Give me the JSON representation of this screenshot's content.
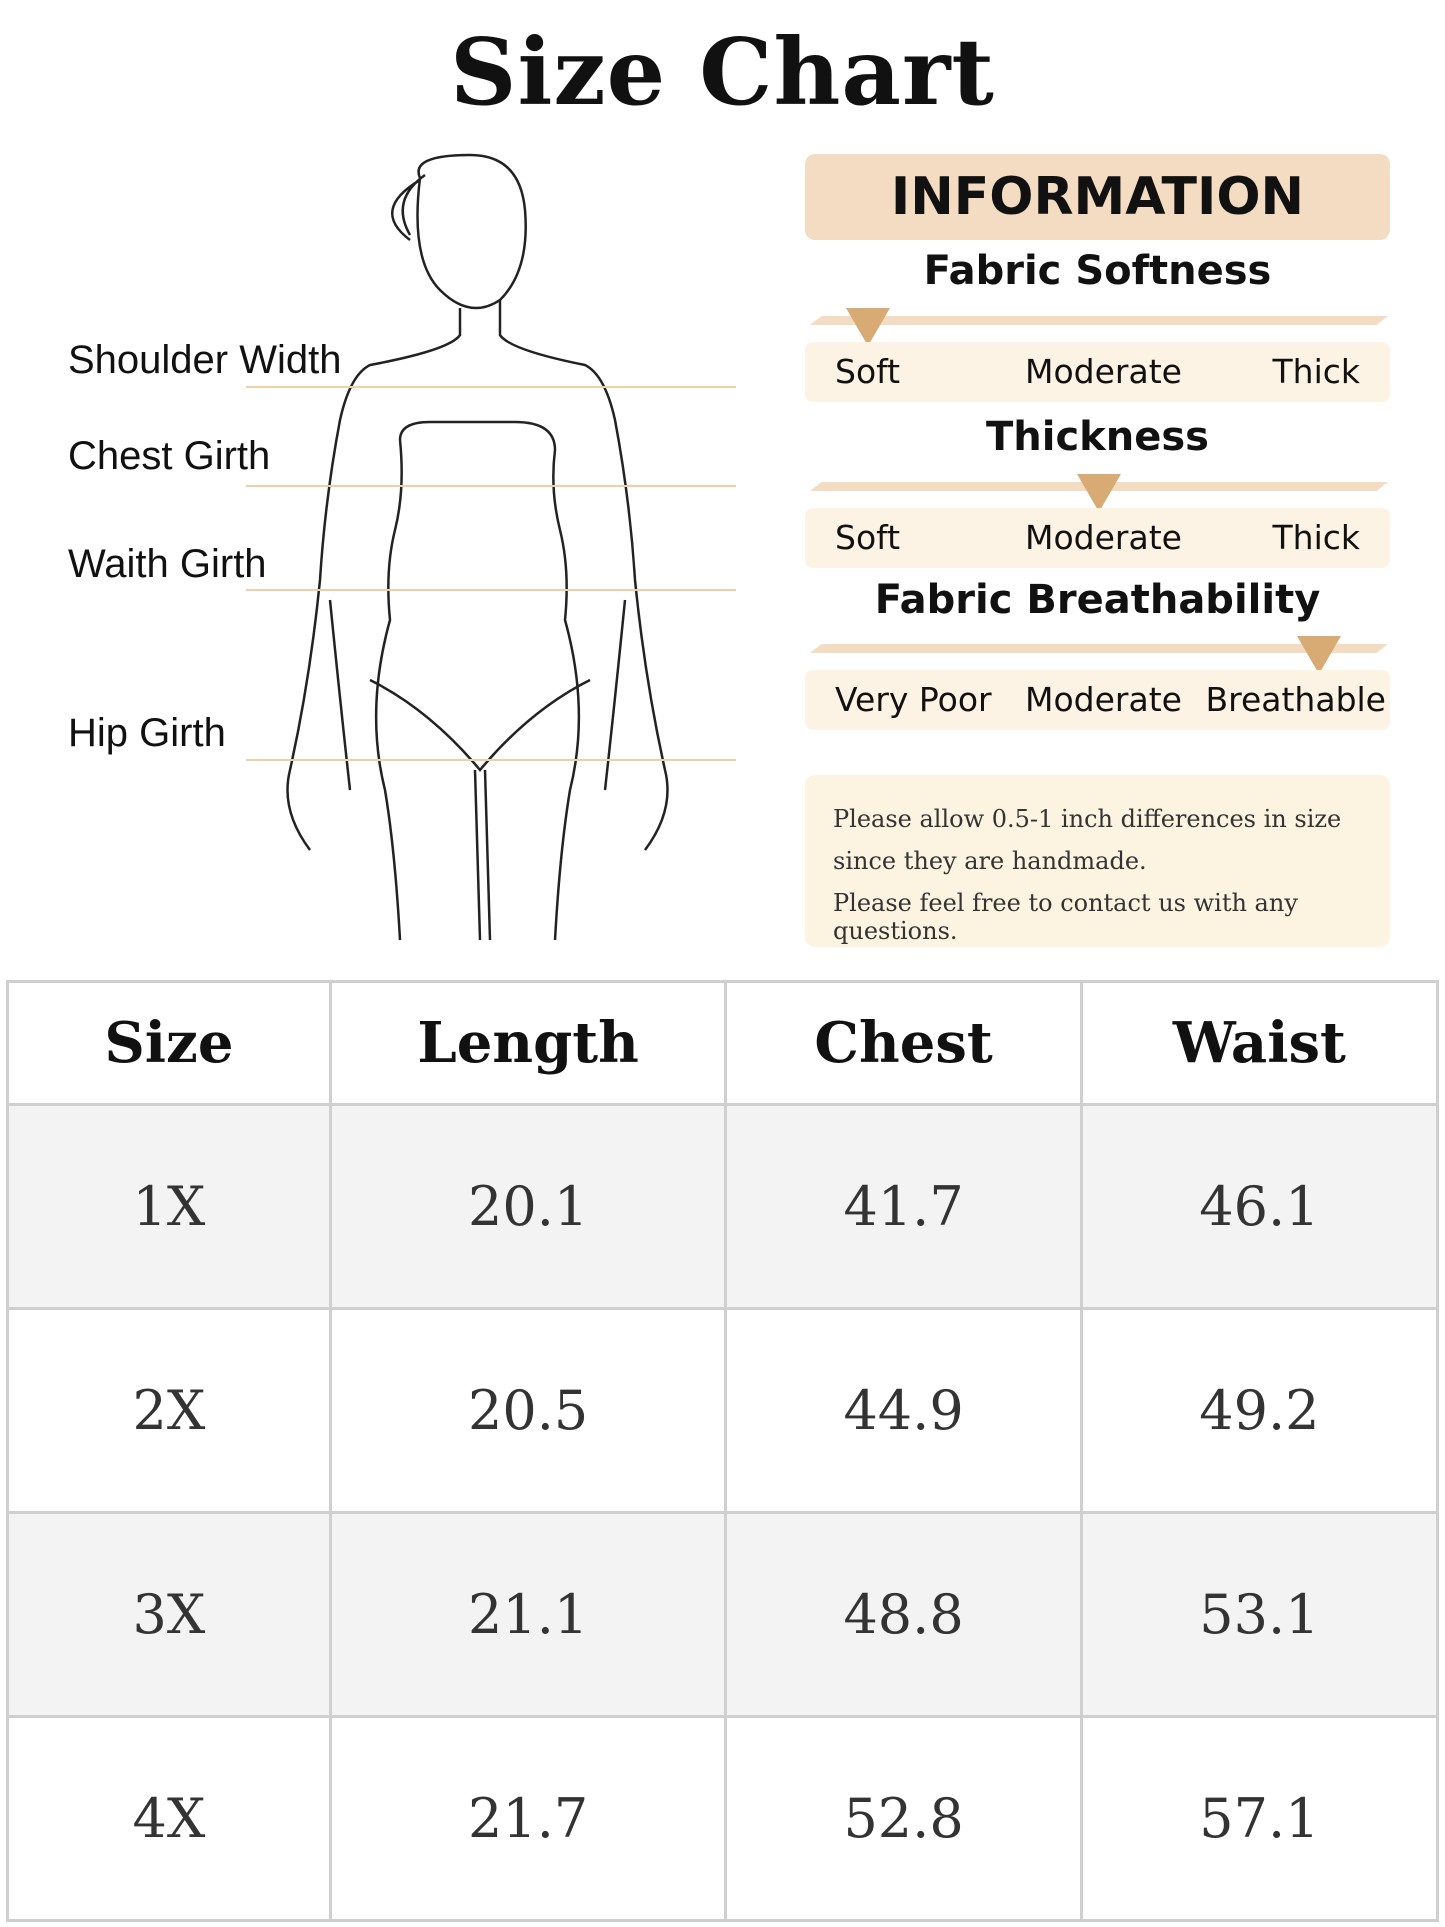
{
  "title": "Size Chart",
  "measurements": [
    "Shoulder Width",
    "Chest Girth",
    "Waith Girth",
    "Hip Girth"
  ],
  "information": {
    "heading": "INFORMATION",
    "scales": [
      {
        "title": "Fabric Softness",
        "labels": [
          "Soft",
          "Moderate",
          "Thick"
        ],
        "selected": "Soft",
        "level": 0.1
      },
      {
        "title": "Thickness",
        "labels": [
          "Soft",
          "Moderate",
          "Thick"
        ],
        "selected": "Moderate",
        "level": 0.5
      },
      {
        "title": "Fabric Breathability",
        "labels": [
          "Very Poor",
          "Moderate",
          "Breathable"
        ],
        "selected": "Breathable",
        "level": 0.88
      }
    ],
    "note": [
      "Please allow 0.5-1 inch differences in size",
      "since they are handmade.",
      "Please feel free to contact us with any questions."
    ]
  },
  "colors": {
    "accent": "#d9ab74",
    "header_bg": "#f3dcc2",
    "label_bg": "#fdf3e4"
  },
  "table": {
    "headers": [
      "Size",
      "Length",
      "Chest",
      "Waist"
    ],
    "rows": [
      [
        "1X",
        "20.1",
        "41.7",
        "46.1"
      ],
      [
        "2X",
        "20.5",
        "44.9",
        "49.2"
      ],
      [
        "3X",
        "21.1",
        "48.8",
        "53.1"
      ],
      [
        "4X",
        "21.7",
        "52.8",
        "57.1"
      ]
    ]
  }
}
